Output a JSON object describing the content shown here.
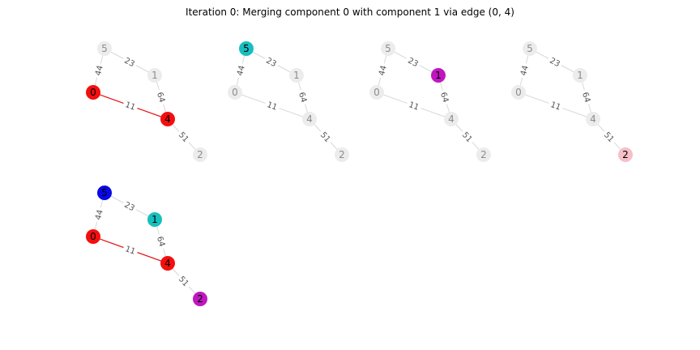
{
  "title": "Iteration 0: Merging component 0 with component 1 via edge (0, 4)",
  "colors": {
    "inactive_node": "#ececec",
    "inactive_node_text": "#8c8c8c",
    "inactive_edge": "#d9d9d9",
    "highlight_edge": "#e31a1c",
    "red": "#f40e0e",
    "cyan": "#17bfbf",
    "magenta": "#bf17bf",
    "pink": "#f5c0c8",
    "blue": "#0808e8"
  },
  "graph": {
    "nodes": [
      "0",
      "1",
      "2",
      "4",
      "5"
    ],
    "edges": [
      {
        "u": "5",
        "v": "0",
        "weight": "44"
      },
      {
        "u": "5",
        "v": "1",
        "weight": "23"
      },
      {
        "u": "0",
        "v": "4",
        "weight": "11"
      },
      {
        "u": "1",
        "v": "4",
        "weight": "64"
      },
      {
        "u": "4",
        "v": "2",
        "weight": "51"
      }
    ]
  },
  "panels": [
    {
      "id": "panel-component-0",
      "node_colors": {
        "0": "red",
        "4": "red"
      },
      "highlight_edges": [
        "0-4"
      ]
    },
    {
      "id": "panel-component-5",
      "node_colors": {
        "5": "cyan"
      },
      "highlight_edges": []
    },
    {
      "id": "panel-component-1",
      "node_colors": {
        "1": "magenta"
      },
      "highlight_edges": []
    },
    {
      "id": "panel-component-2",
      "node_colors": {
        "2": "pink"
      },
      "highlight_edges": []
    },
    {
      "id": "panel-combined",
      "node_colors": {
        "5": "blue",
        "1": "cyan",
        "0": "red",
        "4": "red",
        "2": "magenta"
      },
      "highlight_edges": [
        "0-4"
      ]
    }
  ]
}
